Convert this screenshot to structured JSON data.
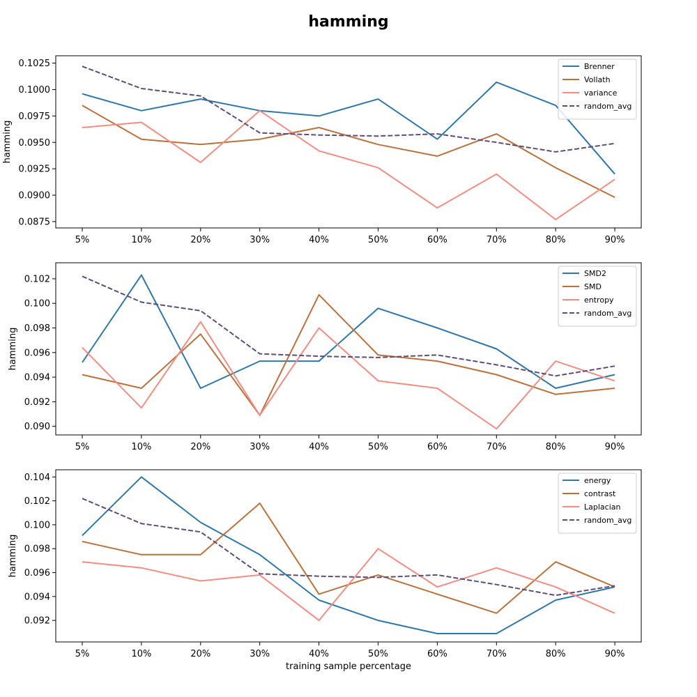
{
  "figure": {
    "title": "hamming",
    "xlabel": "training sample percentage"
  },
  "chart_data": [
    {
      "type": "line",
      "title": "",
      "xlabel": "",
      "ylabel": "hamming",
      "categories": [
        "5%",
        "10%",
        "20%",
        "30%",
        "40%",
        "50%",
        "60%",
        "70%",
        "80%",
        "90%"
      ],
      "ylim": [
        0.0869,
        0.1032
      ],
      "yticks": [
        0.0875,
        0.09,
        0.0925,
        0.095,
        0.0975,
        0.1,
        0.1025
      ],
      "ytick_labels": [
        "0.0875",
        "0.0900",
        "0.0925",
        "0.0950",
        "0.0975",
        "0.1000",
        "0.1025"
      ],
      "legend": "top-right",
      "series": [
        {
          "name": "Brenner",
          "color": "#2c77b0",
          "dashed": false,
          "values": [
            0.0996,
            0.098,
            0.0991,
            0.098,
            0.0975,
            0.0991,
            0.0953,
            0.1007,
            0.0985,
            0.092
          ]
        },
        {
          "name": "Vollath",
          "color": "#bf7039",
          "dashed": false,
          "values": [
            0.0985,
            0.0953,
            0.0948,
            0.0953,
            0.0964,
            0.0948,
            0.0937,
            0.0958,
            0.0926,
            0.0898
          ]
        },
        {
          "name": "variance",
          "color": "#f88a80",
          "dashed": false,
          "values": [
            0.0964,
            0.0969,
            0.0931,
            0.098,
            0.0942,
            0.0926,
            0.0888,
            0.092,
            0.0877,
            0.0915
          ]
        },
        {
          "name": "random_avg",
          "color": "#5e4b7b",
          "dashed": true,
          "values": [
            0.1022,
            0.1001,
            0.0994,
            0.0959,
            0.0957,
            0.0956,
            0.0958,
            0.095,
            0.0941,
            0.0949
          ]
        }
      ]
    },
    {
      "type": "line",
      "title": "",
      "xlabel": "",
      "ylabel": "hamming",
      "categories": [
        "5%",
        "10%",
        "20%",
        "30%",
        "40%",
        "50%",
        "60%",
        "70%",
        "80%",
        "90%"
      ],
      "ylim": [
        0.0893,
        0.1033
      ],
      "yticks": [
        0.09,
        0.092,
        0.094,
        0.096,
        0.098,
        0.1,
        0.102
      ],
      "ytick_labels": [
        "0.090",
        "0.092",
        "0.094",
        "0.096",
        "0.098",
        "0.100",
        "0.102"
      ],
      "legend": "top-right",
      "series": [
        {
          "name": "SMD2",
          "color": "#2c77b0",
          "dashed": false,
          "values": [
            0.0952,
            0.1023,
            0.0931,
            0.0953,
            0.0953,
            0.0996,
            0.098,
            0.0963,
            0.0931,
            0.0942
          ]
        },
        {
          "name": "SMD",
          "color": "#bf7039",
          "dashed": false,
          "values": [
            0.0942,
            0.0931,
            0.0975,
            0.0909,
            0.1007,
            0.0958,
            0.0953,
            0.0942,
            0.0926,
            0.0931
          ]
        },
        {
          "name": "entropy",
          "color": "#f88a80",
          "dashed": false,
          "values": [
            0.0964,
            0.0915,
            0.0985,
            0.0909,
            0.098,
            0.0937,
            0.0931,
            0.0898,
            0.0953,
            0.0937
          ]
        },
        {
          "name": "random_avg",
          "color": "#5e4b7b",
          "dashed": true,
          "values": [
            0.1022,
            0.1001,
            0.0994,
            0.0959,
            0.0957,
            0.0956,
            0.0958,
            0.095,
            0.0941,
            0.0949
          ]
        }
      ]
    },
    {
      "type": "line",
      "title": "",
      "xlabel": "training sample percentage",
      "ylabel": "hamming",
      "categories": [
        "5%",
        "10%",
        "20%",
        "30%",
        "40%",
        "50%",
        "60%",
        "70%",
        "80%",
        "90%"
      ],
      "ylim": [
        0.0902,
        0.1046
      ],
      "yticks": [
        0.092,
        0.094,
        0.096,
        0.098,
        0.1,
        0.102,
        0.104
      ],
      "ytick_labels": [
        "0.092",
        "0.094",
        "0.096",
        "0.098",
        "0.100",
        "0.102",
        "0.104"
      ],
      "legend": "top-right",
      "series": [
        {
          "name": "energy",
          "color": "#2c77b0",
          "dashed": false,
          "values": [
            0.0991,
            0.104,
            0.1002,
            0.0975,
            0.0937,
            0.092,
            0.0909,
            0.0909,
            0.0937,
            0.0948
          ]
        },
        {
          "name": "contrast",
          "color": "#bf7039",
          "dashed": false,
          "values": [
            0.0986,
            0.0975,
            0.0975,
            0.1018,
            0.0942,
            0.0958,
            0.0942,
            0.0926,
            0.0969,
            0.0948
          ]
        },
        {
          "name": "Laplacian",
          "color": "#f88a80",
          "dashed": false,
          "values": [
            0.0969,
            0.0964,
            0.0953,
            0.0958,
            0.092,
            0.098,
            0.0948,
            0.0964,
            0.0948,
            0.0926
          ]
        },
        {
          "name": "random_avg",
          "color": "#5e4b7b",
          "dashed": true,
          "values": [
            0.1022,
            0.1001,
            0.0994,
            0.0959,
            0.0957,
            0.0956,
            0.0958,
            0.095,
            0.0941,
            0.0949
          ]
        }
      ]
    }
  ]
}
